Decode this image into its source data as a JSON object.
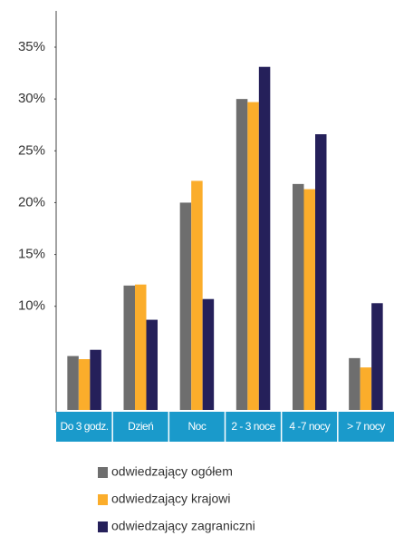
{
  "chart_data": {
    "type": "bar",
    "categories": [
      "Do 3 godz.",
      "Dzień",
      "Noc",
      "2 - 3 noce",
      "4 -7 nocy",
      "> 7 nocy"
    ],
    "series": [
      {
        "name": "odwiedzający ogółem",
        "color": "#6e6e6e",
        "values": [
          5.2,
          12.0,
          20.0,
          30.0,
          21.8,
          5.0
        ]
      },
      {
        "name": "odwiedzający krajowi",
        "color": "#fbad2b",
        "values": [
          4.9,
          12.1,
          22.1,
          29.7,
          21.3,
          4.1
        ]
      },
      {
        "name": "odwiedzający zagraniczni",
        "color": "#25205a",
        "values": [
          5.8,
          8.7,
          10.7,
          33.1,
          26.6,
          10.3
        ]
      }
    ],
    "ylim": [
      0,
      38.5
    ],
    "yticks": [
      {
        "value": 10,
        "label": "10%"
      },
      {
        "value": 15,
        "label": "15%"
      },
      {
        "value": 20,
        "label": "20%"
      },
      {
        "value": 25,
        "label": "25%"
      },
      {
        "value": 30,
        "label": "30%"
      },
      {
        "value": 35,
        "label": "35%"
      }
    ],
    "grid": false,
    "band_color": "#1a9acb"
  }
}
